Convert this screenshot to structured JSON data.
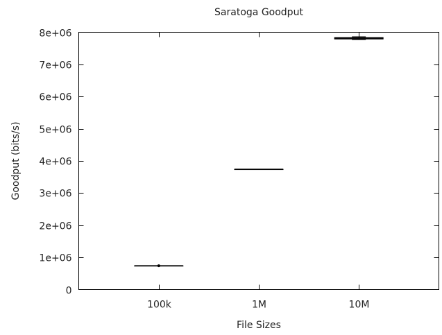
{
  "chart_data": {
    "type": "box",
    "title": "Saratoga Goodput",
    "xlabel": "File Sizes",
    "ylabel": "Goodput (bits/s)",
    "ylim": [
      0,
      8000000
    ],
    "y_ticks": [
      {
        "value": 0,
        "label": "0"
      },
      {
        "value": 1000000,
        "label": "1e+06"
      },
      {
        "value": 2000000,
        "label": "2e+06"
      },
      {
        "value": 3000000,
        "label": "3e+06"
      },
      {
        "value": 4000000,
        "label": "4e+06"
      },
      {
        "value": 5000000,
        "label": "5e+06"
      },
      {
        "value": 6000000,
        "label": "6e+06"
      },
      {
        "value": 7000000,
        "label": "7e+06"
      },
      {
        "value": 8000000,
        "label": "8e+06"
      }
    ],
    "categories": [
      "100k",
      "1M",
      "10M"
    ],
    "boxes": [
      {
        "category": "100k",
        "min": 740000,
        "q1": 740000,
        "median": 740000,
        "q3": 740000,
        "max": 740000,
        "outliers": [
          740000
        ]
      },
      {
        "category": "1M",
        "min": 3740000,
        "q1": 3740000,
        "median": 3740000,
        "q3": 3740000,
        "max": 3740000,
        "outliers": []
      },
      {
        "category": "10M",
        "min": 7770000,
        "q1": 7790000,
        "median": 7815000,
        "q3": 7835000,
        "max": 7860000,
        "outliers": []
      }
    ],
    "grid": false,
    "legend": "none",
    "colors": {
      "axis": "#000000",
      "box_fill": "#9b8fb4",
      "box_line": "#000000",
      "text": "#222222"
    }
  }
}
